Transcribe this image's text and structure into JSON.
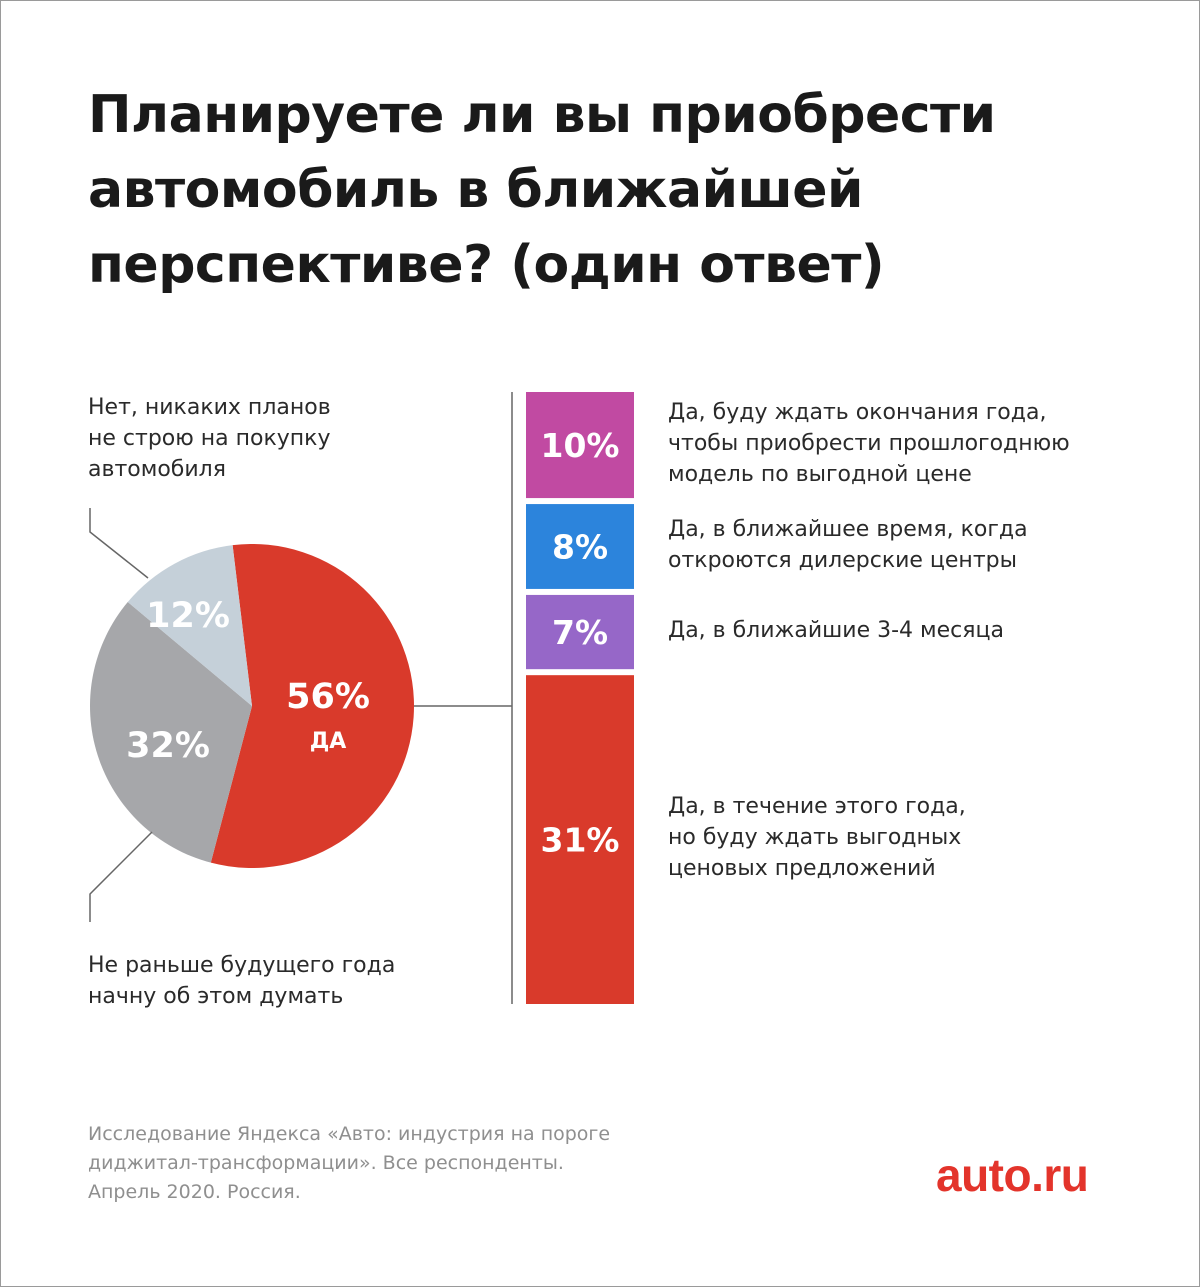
{
  "title": [
    "Планируете ли вы приобрести",
    "автомобиль в ближайшей",
    "перспективе? (один ответ)"
  ],
  "chart_data": [
    {
      "type": "pie",
      "slices": [
        {
          "name": "Да",
          "value": 56,
          "label": "56%",
          "sublabel": "ДА",
          "color": "#d93a2b"
        },
        {
          "name": "Не раньше будущего года начну об этом думать",
          "value": 32,
          "label": "32%",
          "color": "#a6a7aa"
        },
        {
          "name": "Нет, никаких планов не строю на покупку автомобиля",
          "value": 12,
          "label": "12%",
          "color": "#c5d0d9"
        }
      ]
    },
    {
      "type": "bar",
      "stacked": true,
      "orientation": "vertical",
      "segments": [
        {
          "value": 10,
          "label": "10%",
          "color": "#c14aa2",
          "text": [
            "Да, буду ждать окончания года,",
            "чтобы приобрести прошлогоднюю",
            "модель по выгодной цене"
          ]
        },
        {
          "value": 8,
          "label": "8%",
          "color": "#2c84dc",
          "text": [
            "Да, в ближайшее время, когда",
            "откроются дилерские центры"
          ]
        },
        {
          "value": 7,
          "label": "7%",
          "color": "#9667c8",
          "text": [
            "Да, в ближайшие 3-4 месяца"
          ]
        },
        {
          "value": 31,
          "label": "31%",
          "color": "#d93a2b",
          "text": [
            "Да, в течение этого года,",
            "но буду ждать выгодных",
            "ценовых предложений"
          ]
        }
      ]
    }
  ],
  "notes": {
    "no": [
      "Нет, никаких планов",
      "не строю на покупку",
      "автомобиля"
    ],
    "later": [
      "Не раньше будущего года",
      "начну об этом думать"
    ]
  },
  "source": [
    "Исследование Яндекса «Авто: индустрия на пороге",
    "диджитал-трансформации». Все респонденты.",
    "Апрель 2020. Россия."
  ],
  "brand": "auto.ru",
  "colors": {
    "line": "#666666",
    "text": "#1a1a1a",
    "muted": "#8f8f8f",
    "brand": "#e3342b"
  }
}
